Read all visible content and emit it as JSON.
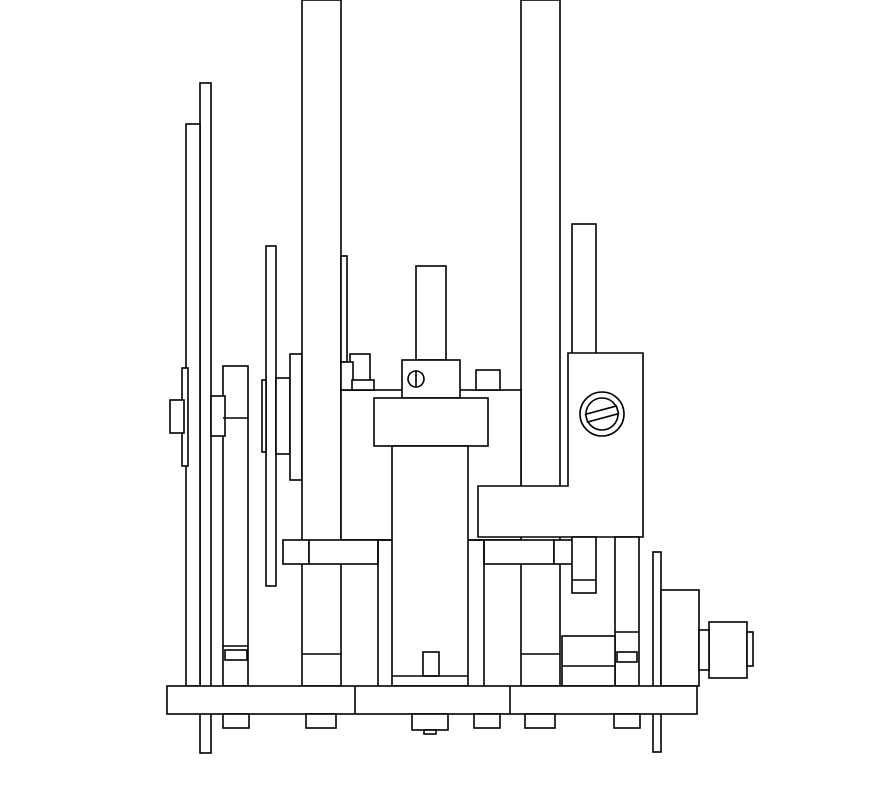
{
  "drawing": {
    "subject": "mechanism-side-elevation",
    "style": "line-art",
    "stroke_color": "#000000",
    "background_color": "#ffffff"
  }
}
